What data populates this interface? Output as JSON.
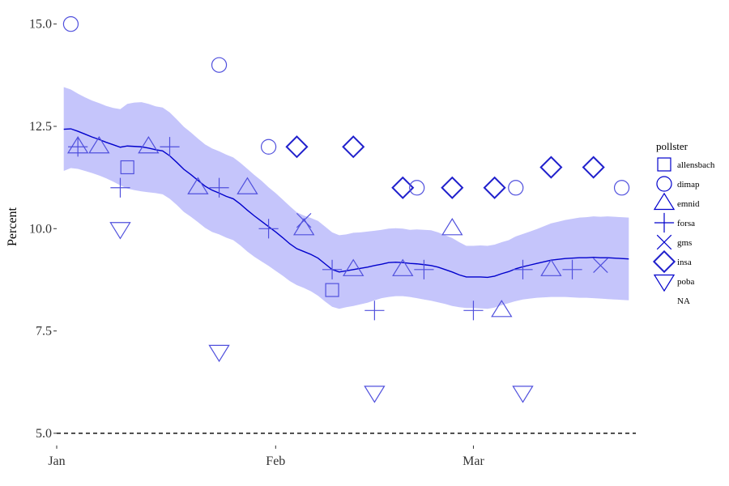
{
  "chart_data": {
    "type": "scatter",
    "title": "",
    "xlabel": "",
    "ylabel": "Percent",
    "xlim": [
      "2017-01-01",
      "2017-03-24"
    ],
    "ylim": [
      4.8,
      15.35
    ],
    "yticks": [
      5.0,
      7.5,
      10.0,
      12.5,
      15.0
    ],
    "ytick_labels": [
      "5.0",
      "7.5",
      "10.0",
      "12.5",
      "15.0"
    ],
    "xticks": [
      "2017-01-01",
      "2017-02-01",
      "2017-03-01"
    ],
    "xtick_labels": [
      "Jan",
      "Feb",
      "Mar"
    ],
    "grid": false,
    "reference_line": {
      "y": 5.0,
      "style": "dashed"
    },
    "colors": {
      "points": "#5050dd",
      "strong_points": "#2020cc",
      "trend": "#0000cc",
      "band": "#c5c5fb",
      "reference": "#000000"
    },
    "legend": {
      "title": "pollster",
      "position": "right",
      "entries": [
        {
          "label": "allensbach",
          "shape": "square"
        },
        {
          "label": "dimap",
          "shape": "circle"
        },
        {
          "label": "emnid",
          "shape": "triangle-up"
        },
        {
          "label": "forsa",
          "shape": "plus"
        },
        {
          "label": "gms",
          "shape": "cross"
        },
        {
          "label": "insa",
          "shape": "diamond"
        },
        {
          "label": "poba",
          "shape": "triangle-down"
        },
        {
          "label": "NA",
          "shape": "none"
        }
      ]
    },
    "trend": {
      "x": [
        "2017-01-02",
        "2017-01-03",
        "2017-01-04",
        "2017-01-05",
        "2017-01-06",
        "2017-01-07",
        "2017-01-08",
        "2017-01-09",
        "2017-01-10",
        "2017-01-11",
        "2017-01-12",
        "2017-01-13",
        "2017-01-14",
        "2017-01-15",
        "2017-01-16",
        "2017-01-17",
        "2017-01-18",
        "2017-01-19",
        "2017-01-20",
        "2017-01-21",
        "2017-01-22",
        "2017-01-23",
        "2017-01-24",
        "2017-01-25",
        "2017-01-26",
        "2017-01-27",
        "2017-01-28",
        "2017-01-29",
        "2017-01-30",
        "2017-01-31",
        "2017-02-01",
        "2017-02-02",
        "2017-02-03",
        "2017-02-04",
        "2017-02-05",
        "2017-02-06",
        "2017-02-07",
        "2017-02-08",
        "2017-02-09",
        "2017-02-10",
        "2017-02-11",
        "2017-02-12",
        "2017-02-13",
        "2017-02-14",
        "2017-02-15",
        "2017-02-16",
        "2017-02-17",
        "2017-02-18",
        "2017-02-19",
        "2017-02-20",
        "2017-02-21",
        "2017-02-22",
        "2017-02-23",
        "2017-02-24",
        "2017-02-25",
        "2017-02-26",
        "2017-02-27",
        "2017-02-28",
        "2017-03-01",
        "2017-03-02",
        "2017-03-03",
        "2017-03-04",
        "2017-03-05",
        "2017-03-06",
        "2017-03-07",
        "2017-03-08",
        "2017-03-09",
        "2017-03-10",
        "2017-03-11",
        "2017-03-12",
        "2017-03-13",
        "2017-03-14",
        "2017-03-15",
        "2017-03-16",
        "2017-03-17",
        "2017-03-18",
        "2017-03-19",
        "2017-03-20",
        "2017-03-21",
        "2017-03-22",
        "2017-03-23"
      ],
      "y": [
        12.43,
        12.44,
        12.38,
        12.31,
        12.24,
        12.18,
        12.11,
        12.05,
        11.99,
        12.02,
        12.01,
        12.0,
        11.97,
        11.93,
        11.9,
        11.78,
        11.62,
        11.45,
        11.32,
        11.18,
        11.04,
        10.94,
        10.87,
        10.79,
        10.73,
        10.6,
        10.45,
        10.31,
        10.18,
        10.05,
        9.92,
        9.78,
        9.63,
        9.51,
        9.44,
        9.37,
        9.28,
        9.14,
        9.0,
        8.94,
        8.97,
        9.0,
        9.03,
        9.06,
        9.1,
        9.13,
        9.17,
        9.18,
        9.17,
        9.15,
        9.14,
        9.12,
        9.1,
        9.06,
        9.0,
        8.94,
        8.87,
        8.82,
        8.82,
        8.82,
        8.81,
        8.84,
        8.9,
        8.95,
        9.02,
        9.07,
        9.11,
        9.15,
        9.19,
        9.23,
        9.25,
        9.27,
        9.28,
        9.29,
        9.29,
        9.3,
        9.29,
        9.29,
        9.28,
        9.27,
        9.26
      ],
      "lower": [
        11.41,
        11.48,
        11.46,
        11.41,
        11.36,
        11.3,
        11.23,
        11.15,
        11.06,
        10.98,
        10.94,
        10.91,
        10.89,
        10.87,
        10.84,
        10.73,
        10.58,
        10.41,
        10.29,
        10.16,
        10.02,
        9.92,
        9.86,
        9.78,
        9.72,
        9.59,
        9.44,
        9.31,
        9.2,
        9.09,
        8.97,
        8.85,
        8.72,
        8.62,
        8.55,
        8.47,
        8.36,
        8.22,
        8.09,
        8.04,
        8.08,
        8.11,
        8.15,
        8.19,
        8.25,
        8.3,
        8.33,
        8.35,
        8.35,
        8.33,
        8.3,
        8.27,
        8.24,
        8.2,
        8.16,
        8.11,
        8.08,
        8.06,
        8.06,
        8.05,
        8.04,
        8.07,
        8.13,
        8.18,
        8.23,
        8.27,
        8.29,
        8.31,
        8.32,
        8.33,
        8.33,
        8.33,
        8.32,
        8.31,
        8.31,
        8.3,
        8.29,
        8.28,
        8.27,
        8.26,
        8.25
      ],
      "upper": [
        13.46,
        13.4,
        13.3,
        13.21,
        13.13,
        13.07,
        13.0,
        12.95,
        12.92,
        13.05,
        13.08,
        13.09,
        13.05,
        12.99,
        12.96,
        12.84,
        12.67,
        12.49,
        12.35,
        12.2,
        12.06,
        11.96,
        11.89,
        11.81,
        11.74,
        11.61,
        11.46,
        11.31,
        11.17,
        11.01,
        10.87,
        10.71,
        10.55,
        10.4,
        10.32,
        10.26,
        10.19,
        10.05,
        9.91,
        9.84,
        9.86,
        9.9,
        9.91,
        9.93,
        9.95,
        9.97,
        10.0,
        10.01,
        10.0,
        9.97,
        9.98,
        9.97,
        9.96,
        9.91,
        9.84,
        9.77,
        9.67,
        9.58,
        9.58,
        9.59,
        9.58,
        9.61,
        9.67,
        9.72,
        9.81,
        9.87,
        9.93,
        9.99,
        10.06,
        10.13,
        10.17,
        10.21,
        10.24,
        10.27,
        10.28,
        10.3,
        10.29,
        10.3,
        10.29,
        10.28,
        10.27
      ]
    },
    "points": [
      {
        "pollster": "dimap",
        "x": "2017-01-03",
        "y": 15.0
      },
      {
        "pollster": "emnid",
        "x": "2017-01-04",
        "y": 12.0
      },
      {
        "pollster": "forsa",
        "x": "2017-01-04",
        "y": 12.0
      },
      {
        "pollster": "emnid",
        "x": "2017-01-07",
        "y": 12.0
      },
      {
        "pollster": "forsa",
        "x": "2017-01-10",
        "y": 11.0
      },
      {
        "pollster": "poba",
        "x": "2017-01-10",
        "y": 10.0
      },
      {
        "pollster": "allensbach",
        "x": "2017-01-11",
        "y": 11.5
      },
      {
        "pollster": "emnid",
        "x": "2017-01-14",
        "y": 12.0
      },
      {
        "pollster": "forsa",
        "x": "2017-01-17",
        "y": 12.0
      },
      {
        "pollster": "emnid",
        "x": "2017-01-21",
        "y": 11.0
      },
      {
        "pollster": "forsa",
        "x": "2017-01-24",
        "y": 11.0
      },
      {
        "pollster": "dimap",
        "x": "2017-01-24",
        "y": 14.0
      },
      {
        "pollster": "poba",
        "x": "2017-01-24",
        "y": 7.0
      },
      {
        "pollster": "emnid",
        "x": "2017-01-28",
        "y": 11.0
      },
      {
        "pollster": "forsa",
        "x": "2017-01-31",
        "y": 10.0
      },
      {
        "pollster": "dimap",
        "x": "2017-01-31",
        "y": 12.0
      },
      {
        "pollster": "insa",
        "x": "2017-02-04",
        "y": 12.0
      },
      {
        "pollster": "emnid",
        "x": "2017-02-05",
        "y": 10.0
      },
      {
        "pollster": "gms",
        "x": "2017-02-05",
        "y": 10.2
      },
      {
        "pollster": "forsa",
        "x": "2017-02-09",
        "y": 9.0
      },
      {
        "pollster": "allensbach",
        "x": "2017-02-09",
        "y": 8.5
      },
      {
        "pollster": "emnid",
        "x": "2017-02-12",
        "y": 9.0
      },
      {
        "pollster": "insa",
        "x": "2017-02-12",
        "y": 12.0
      },
      {
        "pollster": "forsa",
        "x": "2017-02-15",
        "y": 8.0
      },
      {
        "pollster": "poba",
        "x": "2017-02-15",
        "y": 6.0
      },
      {
        "pollster": "emnid",
        "x": "2017-02-19",
        "y": 9.0
      },
      {
        "pollster": "insa",
        "x": "2017-02-19",
        "y": 11.0
      },
      {
        "pollster": "dimap",
        "x": "2017-02-21",
        "y": 11.0
      },
      {
        "pollster": "forsa",
        "x": "2017-02-22",
        "y": 9.0
      },
      {
        "pollster": "emnid",
        "x": "2017-02-26",
        "y": 10.0
      },
      {
        "pollster": "insa",
        "x": "2017-02-26",
        "y": 11.0
      },
      {
        "pollster": "forsa",
        "x": "2017-03-01",
        "y": 8.0
      },
      {
        "pollster": "emnid",
        "x": "2017-03-05",
        "y": 8.0
      },
      {
        "pollster": "insa",
        "x": "2017-03-04",
        "y": 11.0
      },
      {
        "pollster": "dimap",
        "x": "2017-03-07",
        "y": 11.0
      },
      {
        "pollster": "poba",
        "x": "2017-03-08",
        "y": 6.0
      },
      {
        "pollster": "forsa",
        "x": "2017-03-08",
        "y": 9.0
      },
      {
        "pollster": "emnid",
        "x": "2017-03-12",
        "y": 9.0
      },
      {
        "pollster": "insa",
        "x": "2017-03-12",
        "y": 11.5
      },
      {
        "pollster": "forsa",
        "x": "2017-03-15",
        "y": 9.0
      },
      {
        "pollster": "insa",
        "x": "2017-03-18",
        "y": 11.5
      },
      {
        "pollster": "gms",
        "x": "2017-03-19",
        "y": 9.1
      },
      {
        "pollster": "dimap",
        "x": "2017-03-22",
        "y": 11.0
      }
    ]
  }
}
